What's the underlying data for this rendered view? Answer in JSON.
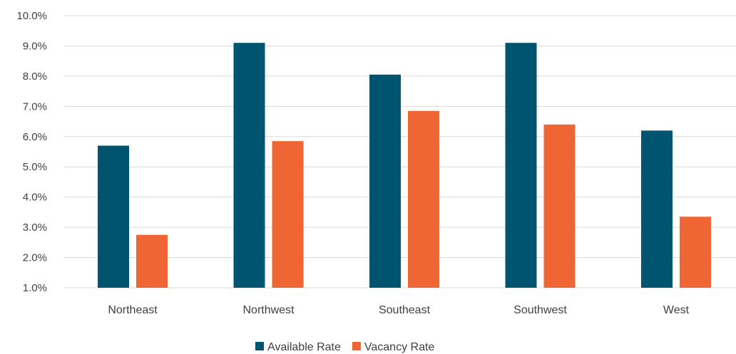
{
  "chart_data": {
    "type": "bar",
    "categories": [
      "Northeast",
      "Northwest",
      "Southeast",
      "Southwest",
      "West"
    ],
    "series": [
      {
        "name": "Available Rate",
        "color": "#00546f",
        "values": [
          5.7,
          9.1,
          8.05,
          9.1,
          6.2
        ]
      },
      {
        "name": "Vacancy Rate",
        "color": "#ef6634",
        "values": [
          2.75,
          5.85,
          6.85,
          6.4,
          3.35
        ]
      }
    ],
    "ylim": [
      1.0,
      10.0
    ],
    "yticks": [
      "1.0%",
      "2.0%",
      "3.0%",
      "4.0%",
      "5.0%",
      "6.0%",
      "7.0%",
      "8.0%",
      "9.0%",
      "10.0%"
    ],
    "grid": true,
    "legend": "bottom-center",
    "gridline_color": "#d9d9d9"
  }
}
